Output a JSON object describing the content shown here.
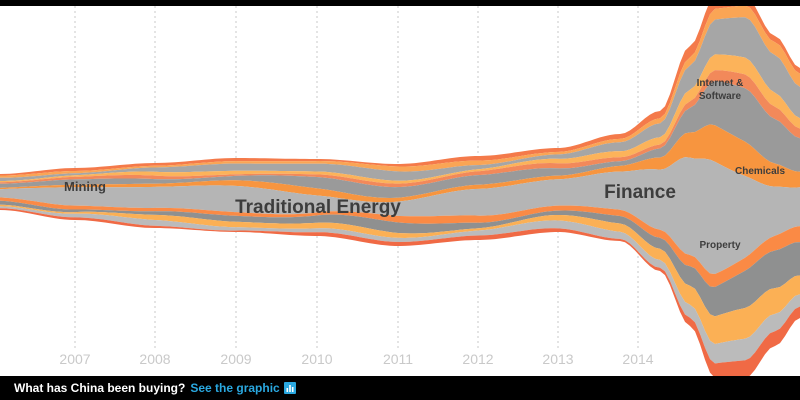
{
  "chart_data": {
    "type": "area",
    "subtype": "streamgraph",
    "x_labels": [
      "2007",
      "2008",
      "2009",
      "2010",
      "2011",
      "2012",
      "2013",
      "2014"
    ],
    "annotations": [
      {
        "text": "Mining"
      },
      {
        "text": "Traditional Energy"
      },
      {
        "text": "Finance"
      },
      {
        "text": "Internet &"
      },
      {
        "text": "Software"
      },
      {
        "text": "Chemicals"
      },
      {
        "text": "Property"
      }
    ],
    "series_colors": [
      "#f47a4a",
      "#faa555",
      "#a6a6a6",
      "#fcb35a",
      "#f2895a",
      "#9a9a9a",
      "#f7953f",
      "#b5b5b5",
      "#fa8a45",
      "#8f9090",
      "#fbb055",
      "#bbbbbb",
      "#f06a45"
    ],
    "grid": true
  },
  "footer": {
    "text": "What has China been buying?",
    "link": "See the graphic",
    "icon": "bar-chart-icon"
  }
}
